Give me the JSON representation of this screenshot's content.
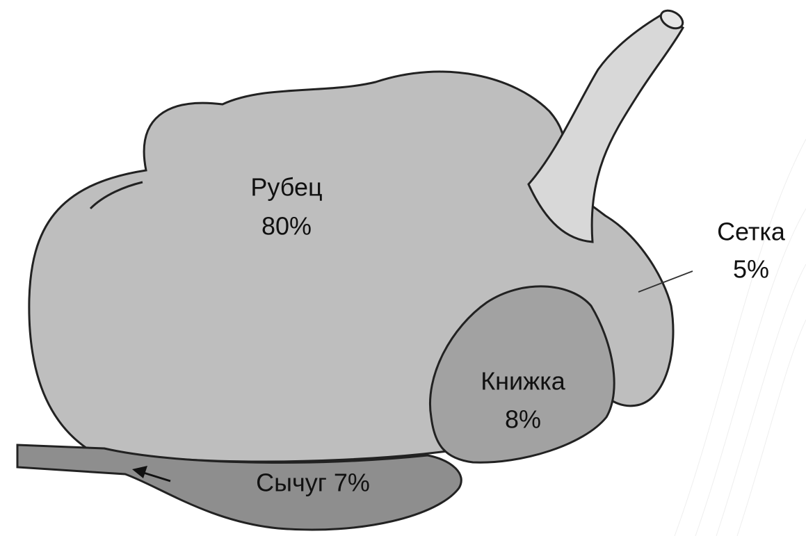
{
  "nodes": [
    {
      "label": "Рубец",
      "share": "80%"
    },
    {
      "label": "Сетка",
      "share": "5%"
    },
    {
      "label": "Книжка",
      "share": "8%"
    },
    {
      "label": "Сычуг 7%"
    }
  ]
}
